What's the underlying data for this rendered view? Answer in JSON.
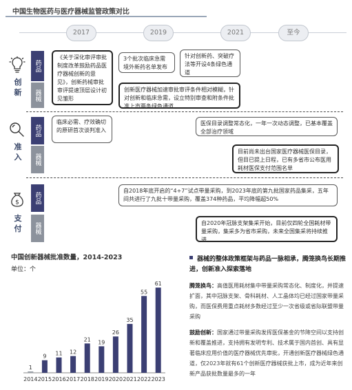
{
  "title": "中国生物医药与医疗器械监管政策对比",
  "timeline": [
    "2017",
    "2019",
    "2021",
    "至今"
  ],
  "sections": [
    {
      "label": "创新",
      "icon": "lightbulb-icon",
      "drug_label": "药品",
      "device_label": "器械",
      "boxes": [
        "《关于深化审评审批制度改革鼓励药品医疗器械创新的意见》，创新药械审批审评提速顶层设计初见雏形",
        "3个批次临床急需境外新药名单发布",
        "针对创新药、突破疗法等开设4条绿色通道",
        "创新医疗器械加速审批审评条件相对模糊，针对创新和临床急需，设立特别审查和附条件批准上市两条绿色通道"
      ]
    },
    {
      "label": "准入",
      "icon": "magnifier-icon",
      "drug_label": "药品",
      "device_label": "器械",
      "boxes": [
        "临床必需、疗效确切的原研首次谈判准入",
        "医保目录调整常态化，一年一次动态调整，已基本覆盖全部治疗领域",
        "目前尚未出台国家医疗器械医保目录，但目已提上日程，已有多省市公布医用耗材医保支付范围名单"
      ]
    },
    {
      "label": "支付",
      "icon": "money-bag-icon",
      "drug_label": "药品",
      "device_label": "器械",
      "boxes": [
        "自2018年底开启的“4+7”试点带量采购，到2023年底的第九批国家药品集采，五年间共进行了九批十带量采购，覆盖374种药品，平均降幅超50%",
        "自2020年冠脉支架集采开始，目前仅四轮全国耗材带量采购，集采多为省市采购，未来全国集采将持续推进"
      ]
    }
  ],
  "chart_data": {
    "type": "bar",
    "title": "中国创新器械批准数量，2014-2023",
    "unit_label": "单位：个",
    "categories": [
      "2014",
      "2015",
      "2016",
      "2017",
      "2018",
      "2019",
      "2020",
      "2021",
      "2022",
      "2023"
    ],
    "values": [
      1,
      9,
      11,
      12,
      21,
      19,
      26,
      35,
      55,
      61
    ],
    "ylim": [
      0,
      65
    ],
    "colors": [
      "#9aa0a8",
      "#3b3f73",
      "#3b3f73",
      "#3b3f73",
      "#3b3f73",
      "#3b3f73",
      "#3b3f73",
      "#3b3f73",
      "#3b3f73",
      "#3b3f73"
    ],
    "grid": false
  },
  "right_column": {
    "heading": "器械的整体政策框架与药品一脉相承，腾笼换鸟长期推进，创新准入探索落地",
    "p1_title": "腾笼换鸟：",
    "p1_body": "高值医用耗材集中带量采购常态化、制度化，并提速扩面，其中冠脉支架、骨科耗材、人工晶体均已经过国家带量采购，而医保费用重点耗材多数经过至少一次省级或省际联盟带量采购",
    "p2_title": "鼓励创新：",
    "p2_body": "国家通过带量采购发挥医保基金的节降空间以支持创新和覆盖推进，支持拥有发明专利、技术属于国内首创、具有显著临床应用价值的医疗器械优先审批，开通创新医疗器械绿色通道，仅2023年就有61个创新医疗器械获批上市，成为近年来创新产品获批数量最多的一年"
  }
}
